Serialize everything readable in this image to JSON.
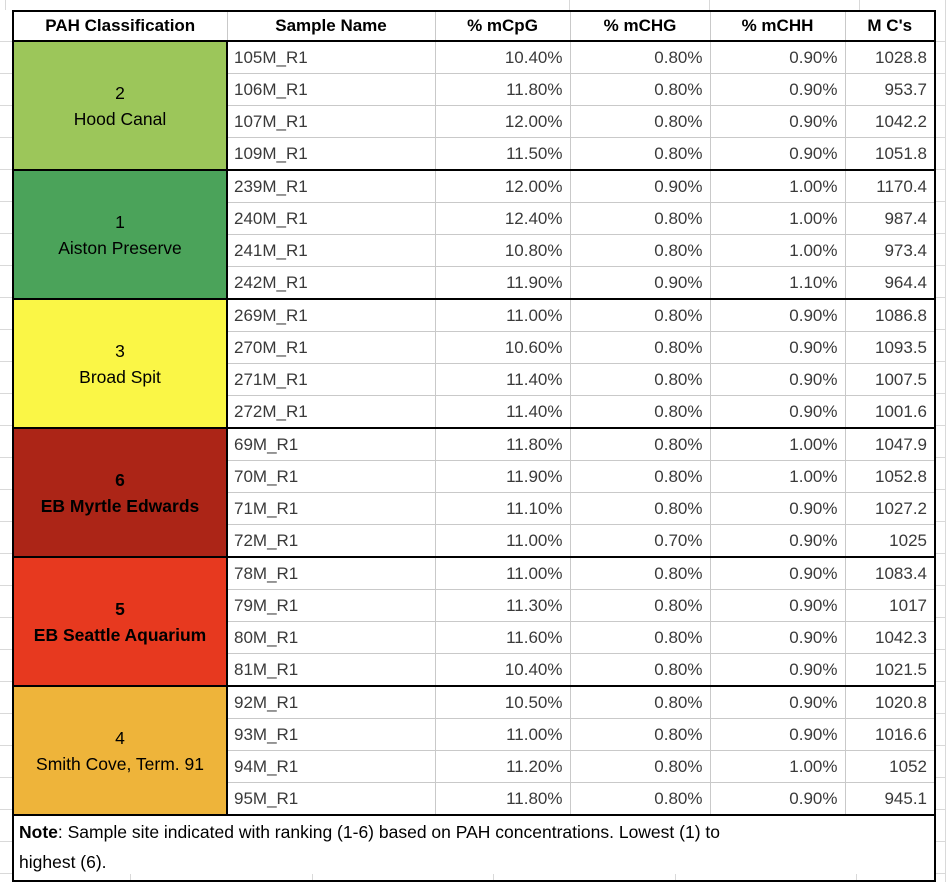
{
  "table": {
    "headers": [
      "PAH Classification",
      "Sample Name",
      "% mCpG",
      "% mCHG",
      "% mCHH",
      "M C's"
    ],
    "groups": [
      {
        "rank": "2",
        "site": "Hood Canal",
        "color": "#9CC65A",
        "bold": false,
        "rows": [
          {
            "sample": "105M_R1",
            "mcpg": "10.40%",
            "mchg": "0.80%",
            "mchh": "0.90%",
            "mcs": "1028.8"
          },
          {
            "sample": "106M_R1",
            "mcpg": "11.80%",
            "mchg": "0.80%",
            "mchh": "0.90%",
            "mcs": "953.7"
          },
          {
            "sample": "107M_R1",
            "mcpg": "12.00%",
            "mchg": "0.80%",
            "mchh": "0.90%",
            "mcs": "1042.2"
          },
          {
            "sample": "109M_R1",
            "mcpg": "11.50%",
            "mchg": "0.80%",
            "mchh": "0.90%",
            "mcs": "1051.8"
          }
        ]
      },
      {
        "rank": "1",
        "site": "Aiston Preserve",
        "color": "#4BA35A",
        "bold": false,
        "rows": [
          {
            "sample": "239M_R1",
            "mcpg": "12.00%",
            "mchg": "0.90%",
            "mchh": "1.00%",
            "mcs": "1170.4"
          },
          {
            "sample": "240M_R1",
            "mcpg": "12.40%",
            "mchg": "0.80%",
            "mchh": "1.00%",
            "mcs": "987.4"
          },
          {
            "sample": "241M_R1",
            "mcpg": "10.80%",
            "mchg": "0.80%",
            "mchh": "1.00%",
            "mcs": "973.4"
          },
          {
            "sample": "242M_R1",
            "mcpg": "11.90%",
            "mchg": "0.90%",
            "mchh": "1.10%",
            "mcs": "964.4"
          }
        ]
      },
      {
        "rank": "3",
        "site": "Broad Spit",
        "color": "#FAF646",
        "bold": false,
        "rows": [
          {
            "sample": "269M_R1",
            "mcpg": "11.00%",
            "mchg": "0.80%",
            "mchh": "0.90%",
            "mcs": "1086.8"
          },
          {
            "sample": "270M_R1",
            "mcpg": "10.60%",
            "mchg": "0.80%",
            "mchh": "0.90%",
            "mcs": "1093.5"
          },
          {
            "sample": "271M_R1",
            "mcpg": "11.40%",
            "mchg": "0.80%",
            "mchh": "0.90%",
            "mcs": "1007.5"
          },
          {
            "sample": "272M_R1",
            "mcpg": "11.40%",
            "mchg": "0.80%",
            "mchh": "0.90%",
            "mcs": "1001.6"
          }
        ]
      },
      {
        "rank": "6",
        "site": "EB Myrtle Edwards",
        "color": "#AC2517",
        "bold": true,
        "rows": [
          {
            "sample": "69M_R1",
            "mcpg": "11.80%",
            "mchg": "0.80%",
            "mchh": "1.00%",
            "mcs": "1047.9"
          },
          {
            "sample": "70M_R1",
            "mcpg": "11.90%",
            "mchg": "0.80%",
            "mchh": "1.00%",
            "mcs": "1052.8"
          },
          {
            "sample": "71M_R1",
            "mcpg": "11.10%",
            "mchg": "0.80%",
            "mchh": "0.90%",
            "mcs": "1027.2"
          },
          {
            "sample": "72M_R1",
            "mcpg": "11.00%",
            "mchg": "0.70%",
            "mchh": "0.90%",
            "mcs": "1025"
          }
        ]
      },
      {
        "rank": "5",
        "site": "EB Seattle Aquarium",
        "color": "#E7391F",
        "bold": true,
        "rows": [
          {
            "sample": "78M_R1",
            "mcpg": "11.00%",
            "mchg": "0.80%",
            "mchh": "0.90%",
            "mcs": "1083.4"
          },
          {
            "sample": "79M_R1",
            "mcpg": "11.30%",
            "mchg": "0.80%",
            "mchh": "0.90%",
            "mcs": "1017"
          },
          {
            "sample": "80M_R1",
            "mcpg": "11.60%",
            "mchg": "0.80%",
            "mchh": "0.90%",
            "mcs": "1042.3"
          },
          {
            "sample": "81M_R1",
            "mcpg": "10.40%",
            "mchg": "0.80%",
            "mchh": "0.90%",
            "mcs": "1021.5"
          }
        ]
      },
      {
        "rank": "4",
        "site": "Smith Cove, Term. 91",
        "color": "#EEB43A",
        "bold": false,
        "rows": [
          {
            "sample": "92M_R1",
            "mcpg": "10.50%",
            "mchg": "0.80%",
            "mchh": "0.90%",
            "mcs": "1020.8"
          },
          {
            "sample": "93M_R1",
            "mcpg": "11.00%",
            "mchg": "0.80%",
            "mchh": "0.90%",
            "mcs": "1016.6"
          },
          {
            "sample": "94M_R1",
            "mcpg": "11.20%",
            "mchg": "0.80%",
            "mchh": "1.00%",
            "mcs": "1052"
          },
          {
            "sample": "95M_R1",
            "mcpg": "11.80%",
            "mchg": "0.80%",
            "mchh": "0.90%",
            "mcs": "945.1"
          }
        ]
      }
    ],
    "note": {
      "label": "Note",
      "line1": ": Sample site indicated with ranking (1-6) based on PAH concentrations. Lowest (1) to",
      "line2": "highest (6)."
    }
  }
}
